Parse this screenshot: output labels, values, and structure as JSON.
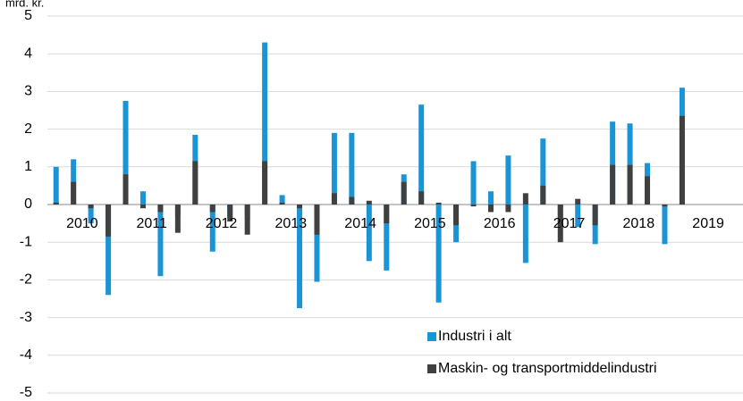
{
  "chart_data": {
    "type": "bar",
    "overlap": true,
    "y_label": "mrd. kr.",
    "categories": [
      "2010",
      null,
      null,
      null,
      "2011",
      null,
      null,
      null,
      "2012",
      null,
      null,
      null,
      "2013",
      null,
      null,
      null,
      "2014",
      null,
      null,
      null,
      "2015",
      null,
      null,
      null,
      "2016",
      null,
      null,
      null,
      "2017",
      null,
      null,
      null,
      "2018",
      null,
      null,
      null,
      "2019",
      null,
      null,
      null
    ],
    "series": [
      {
        "name": "Industri i alt",
        "color": "#1b94d6",
        "values": [
          1.0,
          1.2,
          -0.5,
          -2.4,
          2.75,
          0.35,
          -1.9,
          -0.3,
          1.85,
          -1.25,
          -0.35,
          -0.4,
          4.3,
          0.25,
          -2.75,
          -2.05,
          1.9,
          1.9,
          -1.5,
          -1.75,
          0.8,
          2.65,
          -2.6,
          -1.0,
          1.15,
          0.35,
          1.3,
          -1.55,
          1.75,
          -0.5,
          -0.6,
          -1.05,
          2.2,
          2.15,
          1.1,
          -1.05,
          3.1,
          null,
          null,
          null
        ]
      },
      {
        "name": "Maskin- og transportmiddelindustri",
        "color": "#404040",
        "values": [
          0.05,
          0.6,
          -0.1,
          -0.85,
          0.8,
          -0.1,
          -0.2,
          -0.75,
          1.15,
          -0.2,
          -0.45,
          -0.8,
          1.15,
          0.05,
          -0.1,
          -0.8,
          0.3,
          0.2,
          0.1,
          -0.5,
          0.6,
          0.35,
          0.05,
          -0.55,
          -0.05,
          -0.2,
          -0.2,
          0.3,
          0.5,
          -1.0,
          0.15,
          -0.55,
          1.05,
          1.05,
          0.75,
          -0.05,
          2.35,
          null,
          null,
          null
        ]
      }
    ],
    "ylim": [
      -5,
      5
    ],
    "yticks": [
      -5,
      -4,
      -3,
      -2,
      -1,
      0,
      1,
      2,
      3,
      4,
      5
    ],
    "grid": true,
    "legend": "lower-right"
  }
}
